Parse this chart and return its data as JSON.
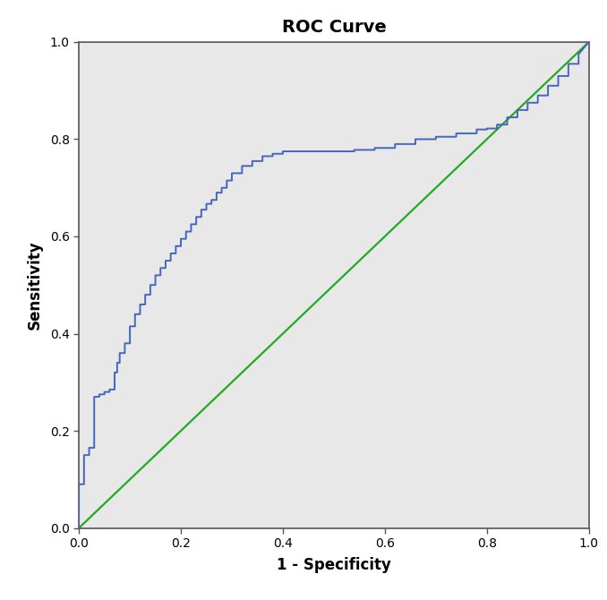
{
  "title": "ROC Curve",
  "xlabel": "1 - Specificity",
  "ylabel": "Sensitivity",
  "xlim": [
    0.0,
    1.0
  ],
  "ylim": [
    0.0,
    1.0
  ],
  "xticks": [
    0.0,
    0.2,
    0.4,
    0.6,
    0.8,
    1.0
  ],
  "yticks": [
    0.0,
    0.2,
    0.4,
    0.6,
    0.8,
    1.0
  ],
  "plot_bg_color": "#e8e8e8",
  "fig_bg_color": "#ffffff",
  "roc_color": "#4466bb",
  "diag_color": "#22aa22",
  "roc_linewidth": 1.4,
  "diag_linewidth": 1.6,
  "title_fontsize": 14,
  "axis_label_fontsize": 12,
  "tick_fontsize": 10,
  "spine_color": "#555555",
  "roc_x": [
    0.0,
    0.0,
    0.01,
    0.01,
    0.02,
    0.02,
    0.03,
    0.03,
    0.04,
    0.04,
    0.05,
    0.05,
    0.06,
    0.06,
    0.07,
    0.07,
    0.075,
    0.075,
    0.08,
    0.08,
    0.09,
    0.09,
    0.1,
    0.1,
    0.11,
    0.11,
    0.12,
    0.12,
    0.13,
    0.13,
    0.14,
    0.14,
    0.15,
    0.15,
    0.16,
    0.16,
    0.17,
    0.17,
    0.18,
    0.18,
    0.19,
    0.19,
    0.2,
    0.2,
    0.21,
    0.21,
    0.22,
    0.22,
    0.23,
    0.23,
    0.24,
    0.24,
    0.25,
    0.25,
    0.26,
    0.26,
    0.27,
    0.27,
    0.28,
    0.28,
    0.29,
    0.29,
    0.3,
    0.3,
    0.32,
    0.32,
    0.34,
    0.34,
    0.36,
    0.36,
    0.38,
    0.38,
    0.4,
    0.4,
    0.42,
    0.42,
    0.44,
    0.44,
    0.46,
    0.46,
    0.48,
    0.48,
    0.5,
    0.5,
    0.54,
    0.54,
    0.58,
    0.58,
    0.62,
    0.62,
    0.66,
    0.66,
    0.7,
    0.7,
    0.74,
    0.74,
    0.78,
    0.78,
    0.8,
    0.8,
    0.82,
    0.82,
    0.84,
    0.84,
    0.86,
    0.86,
    0.88,
    0.88,
    0.9,
    0.9,
    0.92,
    0.92,
    0.94,
    0.94,
    0.96,
    0.96,
    0.98,
    0.98,
    1.0
  ],
  "roc_y": [
    0.0,
    0.09,
    0.09,
    0.15,
    0.15,
    0.165,
    0.165,
    0.27,
    0.27,
    0.275,
    0.275,
    0.28,
    0.28,
    0.285,
    0.285,
    0.32,
    0.32,
    0.34,
    0.34,
    0.36,
    0.36,
    0.38,
    0.38,
    0.415,
    0.415,
    0.44,
    0.44,
    0.46,
    0.46,
    0.48,
    0.48,
    0.5,
    0.5,
    0.52,
    0.52,
    0.535,
    0.535,
    0.55,
    0.55,
    0.565,
    0.565,
    0.58,
    0.58,
    0.595,
    0.595,
    0.61,
    0.61,
    0.625,
    0.625,
    0.64,
    0.64,
    0.655,
    0.655,
    0.667,
    0.667,
    0.675,
    0.675,
    0.69,
    0.69,
    0.7,
    0.7,
    0.715,
    0.715,
    0.73,
    0.73,
    0.745,
    0.745,
    0.755,
    0.755,
    0.765,
    0.765,
    0.77,
    0.77,
    0.775,
    0.775,
    0.775,
    0.775,
    0.775,
    0.775,
    0.775,
    0.775,
    0.775,
    0.775,
    0.775,
    0.775,
    0.778,
    0.778,
    0.782,
    0.782,
    0.79,
    0.79,
    0.8,
    0.8,
    0.805,
    0.805,
    0.812,
    0.812,
    0.82,
    0.82,
    0.822,
    0.822,
    0.83,
    0.83,
    0.845,
    0.845,
    0.86,
    0.86,
    0.875,
    0.875,
    0.89,
    0.89,
    0.91,
    0.91,
    0.93,
    0.93,
    0.955,
    0.955,
    0.975,
    1.0
  ]
}
